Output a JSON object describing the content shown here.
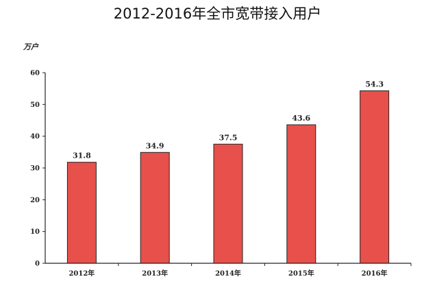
{
  "chart_data": {
    "type": "bar",
    "title": "2012-2016年全市宽带接入用户",
    "ylabel": "万户",
    "xlabel": "",
    "categories": [
      "2012年",
      "2013年",
      "2014年",
      "2015年",
      "2016年"
    ],
    "values": [
      31.8,
      34.9,
      37.5,
      43.6,
      54.3
    ],
    "value_labels": [
      "31.8",
      "34.9",
      "37.5",
      "43.6",
      "54.3"
    ],
    "ylim": [
      0,
      60
    ],
    "yticks": [
      0,
      10,
      20,
      30,
      40,
      50,
      60
    ],
    "grid": false,
    "bar_color": "#e8504b",
    "bar_edge_color": "#222222"
  }
}
